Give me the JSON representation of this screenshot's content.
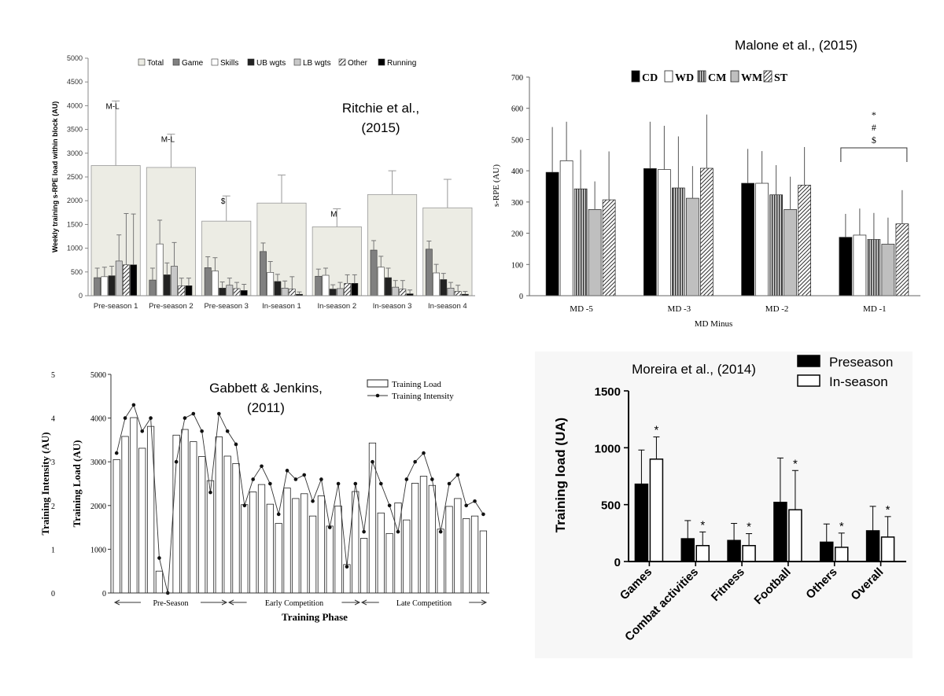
{
  "chart_data": [
    {
      "id": "ritchie",
      "type": "bar",
      "citation": "Ritchie et al., (2015)",
      "citation_lines": [
        "Ritchie et al.,",
        "(2015)"
      ],
      "ylabel": "Weekly training s-RPE load within block (AU)",
      "ylim": [
        0,
        5000
      ],
      "yticks": [
        0,
        500,
        1000,
        1500,
        2000,
        2500,
        3000,
        3500,
        4000,
        4500,
        5000
      ],
      "categories": [
        "Pre-season 1",
        "Pre-season 2",
        "Pre-season 3",
        "In-season 1",
        "In-season 2",
        "In-season 3",
        "In-season 4"
      ],
      "total_label": "Total",
      "total_values": [
        2740,
        2700,
        1570,
        1950,
        1450,
        2130,
        1850
      ],
      "total_errors": [
        1360,
        700,
        530,
        590,
        380,
        500,
        600
      ],
      "annotations": [
        "M-L",
        "M-L",
        "$",
        "",
        "M",
        "",
        ""
      ],
      "series": [
        {
          "name": "Game",
          "fill": "#808080",
          "pattern": "none",
          "values": [
            380,
            330,
            590,
            930,
            410,
            960,
            980
          ],
          "errors": [
            200,
            250,
            230,
            180,
            150,
            200,
            170
          ]
        },
        {
          "name": "Skills",
          "fill": "#ffffff",
          "pattern": "none",
          "values": [
            400,
            1090,
            520,
            490,
            430,
            600,
            480
          ],
          "errors": [
            200,
            500,
            280,
            230,
            150,
            230,
            180
          ]
        },
        {
          "name": "UB wgts",
          "fill": "#222222",
          "pattern": "none",
          "values": [
            420,
            440,
            160,
            300,
            140,
            380,
            340
          ],
          "errors": [
            200,
            250,
            130,
            150,
            90,
            200,
            130
          ]
        },
        {
          "name": "LB wgts",
          "fill": "#c8c8c8",
          "pattern": "none",
          "values": [
            730,
            620,
            220,
            160,
            150,
            180,
            160
          ],
          "errors": [
            550,
            500,
            150,
            150,
            130,
            140,
            120
          ]
        },
        {
          "name": "Other",
          "fill": "#ffffff",
          "pattern": "diag",
          "values": [
            650,
            210,
            150,
            140,
            260,
            140,
            90
          ],
          "errors": [
            1080,
            160,
            130,
            260,
            180,
            180,
            130
          ]
        },
        {
          "name": "Running",
          "fill": "#000000",
          "pattern": "none",
          "values": [
            650,
            210,
            110,
            30,
            260,
            40,
            30
          ],
          "errors": [
            1070,
            160,
            130,
            50,
            180,
            80,
            60
          ]
        }
      ]
    },
    {
      "id": "malone",
      "type": "bar",
      "citation": "Malone et al., (2015)",
      "ylabel": "s-RPE (AU)",
      "xlabel": "MD Minus",
      "ylim": [
        0,
        700
      ],
      "yticks": [
        0,
        100,
        200,
        300,
        400,
        500,
        600,
        700
      ],
      "categories": [
        "MD -5",
        "MD -3",
        "MD -2",
        "MD -1"
      ],
      "significance_marks": [
        "*",
        "#",
        "$"
      ],
      "series": [
        {
          "name": "CD",
          "fill": "#000000",
          "pattern": "none",
          "values": [
            395,
            407,
            360,
            187
          ],
          "errors": [
            145,
            150,
            110,
            75
          ]
        },
        {
          "name": "WD",
          "fill": "#ffffff",
          "pattern": "none",
          "values": [
            432,
            404,
            360,
            194
          ],
          "errors": [
            125,
            140,
            103,
            85
          ]
        },
        {
          "name": "CM",
          "fill": "#555555",
          "pattern": "vlines",
          "values": [
            342,
            345,
            323,
            180
          ],
          "errors": [
            125,
            165,
            95,
            85
          ]
        },
        {
          "name": "WM",
          "fill": "#bfbfbf",
          "pattern": "none",
          "values": [
            276,
            312,
            276,
            165
          ],
          "errors": [
            90,
            103,
            105,
            85
          ]
        },
        {
          "name": "ST",
          "fill": "#ffffff",
          "pattern": "diag",
          "values": [
            307,
            408,
            354,
            230
          ],
          "errors": [
            155,
            172,
            122,
            108
          ]
        }
      ]
    },
    {
      "id": "gabbett",
      "type": "bar+line",
      "citation": "Gabbett & Jenkins, (2011)",
      "citation_lines": [
        "Gabbett & Jenkins,",
        "(2011)"
      ],
      "xlabel": "Training Phase",
      "ylabel_left": "Training Intensity (AU)",
      "ylabel_right": "Training Load (AU)",
      "ylim_intensity": [
        0,
        5
      ],
      "ylim_load": [
        0,
        5000
      ],
      "yticks_intensity": [
        0,
        1,
        2,
        3,
        4,
        5
      ],
      "yticks_load": [
        0,
        1000,
        2000,
        3000,
        4000,
        5000
      ],
      "phases": [
        "Pre-Season",
        "Early Competition",
        "Late Competition"
      ],
      "legend": [
        "Training Load",
        "Training Intensity"
      ],
      "load_values": [
        3050,
        3580,
        4010,
        3310,
        3810,
        500,
        0,
        3610,
        3740,
        3460,
        3120,
        2570,
        3570,
        3130,
        2960,
        2020,
        2310,
        2480,
        2030,
        1590,
        2400,
        2160,
        2270,
        1760,
        2220,
        1530,
        1990,
        650,
        2320,
        1250,
        3430,
        1830,
        1360,
        2060,
        1670,
        2510,
        2670,
        2460,
        1460,
        1980,
        2160,
        1700,
        1760,
        1420
      ],
      "intensity_values": [
        3.2,
        4.0,
        4.3,
        3.7,
        4.0,
        0.8,
        0.0,
        3.0,
        4.0,
        4.1,
        3.7,
        2.3,
        4.1,
        3.7,
        3.4,
        2.0,
        2.6,
        2.9,
        2.5,
        1.8,
        2.8,
        2.6,
        2.7,
        2.1,
        2.6,
        1.5,
        2.5,
        0.6,
        2.5,
        1.4,
        3.0,
        2.5,
        2.0,
        1.4,
        2.6,
        3.0,
        3.2,
        2.6,
        1.4,
        2.5,
        2.7,
        2.0,
        2.1,
        1.8
      ]
    },
    {
      "id": "moreira",
      "type": "bar",
      "citation": "Moreira et al., (2014)",
      "ylabel": "Training load (UA)",
      "ylim": [
        0,
        1500
      ],
      "yticks": [
        0,
        500,
        1000,
        1500
      ],
      "categories": [
        "Games",
        "Combat activities",
        "Fitness",
        "Football",
        "Others",
        "Overall"
      ],
      "significance_mark": "*",
      "series": [
        {
          "name": "Preseason",
          "fill": "#000000",
          "values": [
            680,
            200,
            185,
            520,
            170,
            270
          ],
          "errors": [
            300,
            160,
            150,
            390,
            160,
            215
          ]
        },
        {
          "name": "In-season",
          "fill": "#ffffff",
          "values": [
            900,
            140,
            140,
            455,
            125,
            215
          ],
          "errors": [
            195,
            120,
            105,
            345,
            125,
            180
          ]
        }
      ]
    }
  ]
}
